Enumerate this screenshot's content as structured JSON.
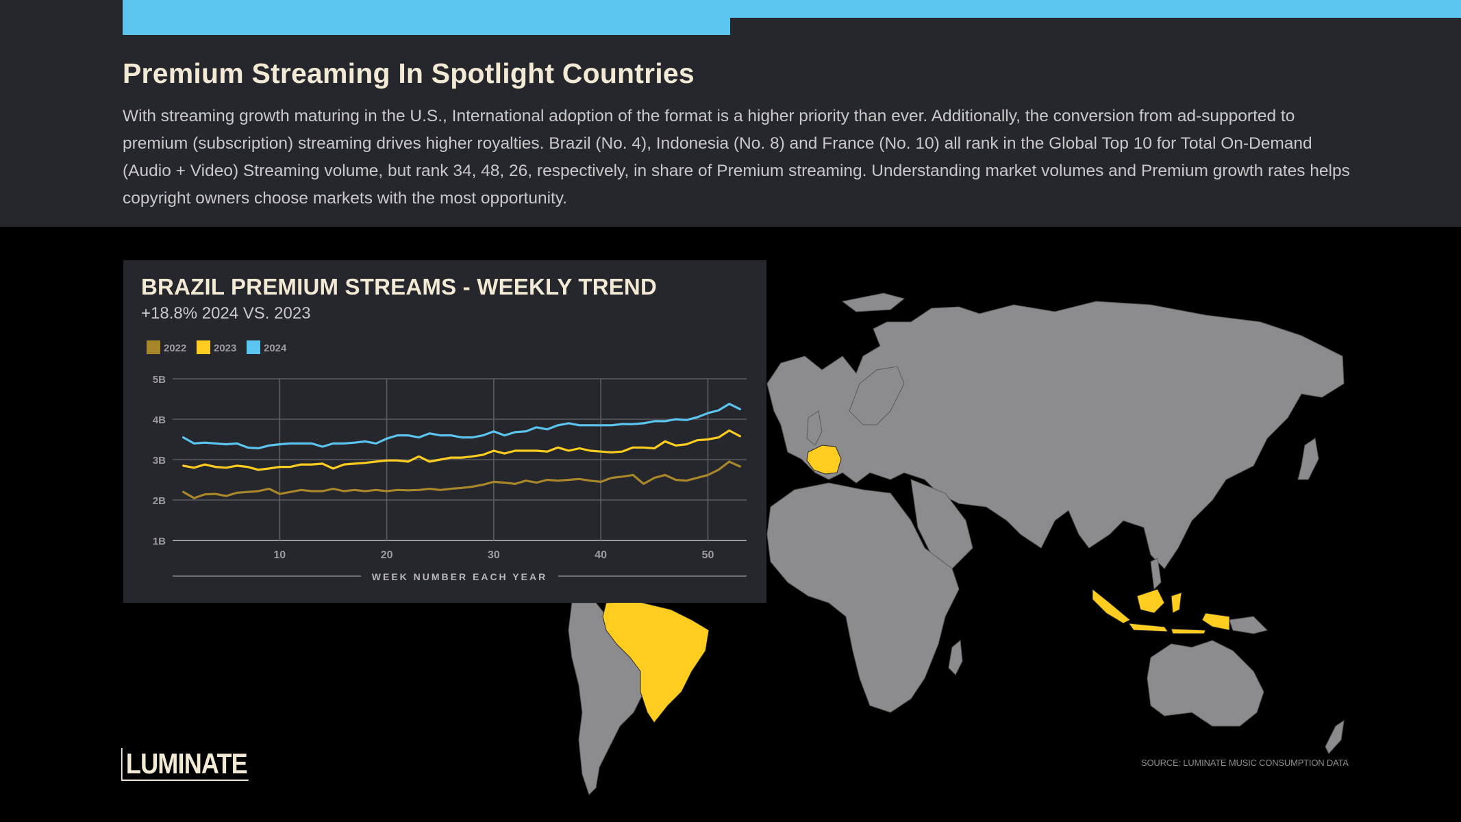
{
  "header": {
    "title": "Premium Streaming In Spotlight Countries",
    "intro": "With streaming growth maturing in the U.S., International adoption of the format is a higher priority than ever. Additionally, the conversion from ad-supported to premium (subscription) streaming drives higher royalties. Brazil (No. 4), Indonesia (No. 8) and France (No. 10) all rank in the Global Top 10 for Total On-Demand (Audio + Video) Streaming volume, but rank 34, 48, 26, respectively, in share of Premium streaming. Understanding market volumes and Premium growth rates helps copyright owners choose markets with the most opportunity."
  },
  "colors": {
    "accent": "#5bc5ef",
    "highlight_country": "#ffcd1f",
    "land": "#8c8c8f",
    "panel": "#26272c"
  },
  "map": {
    "highlighted_countries": [
      "Brazil",
      "France",
      "Indonesia"
    ]
  },
  "chart_data": {
    "type": "line",
    "title": "BRAZIL PREMIUM STREAMS - WEEKLY TREND",
    "subtitle": "+18.8% 2024 VS. 2023",
    "xlabel": "WEEK NUMBER EACH YEAR",
    "ylabel": "",
    "x_ticks": [
      10,
      20,
      30,
      40,
      50
    ],
    "y_ticks": [
      "1B",
      "2B",
      "3B",
      "4B",
      "5B"
    ],
    "y_tick_values": [
      1,
      2,
      3,
      4,
      5
    ],
    "xlim": [
      0,
      54
    ],
    "ylim": [
      1,
      5
    ],
    "grid": true,
    "legend_position": "top-left",
    "x": [
      1,
      2,
      3,
      4,
      5,
      6,
      7,
      8,
      9,
      10,
      11,
      12,
      13,
      14,
      15,
      16,
      17,
      18,
      19,
      20,
      21,
      22,
      23,
      24,
      25,
      26,
      27,
      28,
      29,
      30,
      31,
      32,
      33,
      34,
      35,
      36,
      37,
      38,
      39,
      40,
      41,
      42,
      43,
      44,
      45,
      46,
      47,
      48,
      49,
      50,
      51,
      52,
      53
    ],
    "series": [
      {
        "name": "2022",
        "color": "#a8872b",
        "values": [
          2.2,
          2.05,
          2.14,
          2.15,
          2.1,
          2.18,
          2.2,
          2.22,
          2.28,
          2.15,
          2.2,
          2.25,
          2.22,
          2.22,
          2.28,
          2.22,
          2.25,
          2.22,
          2.25,
          2.22,
          2.25,
          2.24,
          2.25,
          2.28,
          2.25,
          2.28,
          2.3,
          2.33,
          2.38,
          2.45,
          2.43,
          2.4,
          2.48,
          2.43,
          2.5,
          2.48,
          2.5,
          2.52,
          2.48,
          2.45,
          2.55,
          2.58,
          2.62,
          2.4,
          2.55,
          2.62,
          2.5,
          2.48,
          2.55,
          2.62,
          2.75,
          2.95,
          2.83
        ]
      },
      {
        "name": "2023",
        "color": "#ffcd1f",
        "values": [
          2.85,
          2.8,
          2.88,
          2.82,
          2.8,
          2.85,
          2.82,
          2.75,
          2.78,
          2.82,
          2.82,
          2.88,
          2.88,
          2.9,
          2.78,
          2.88,
          2.9,
          2.92,
          2.95,
          2.98,
          2.98,
          2.95,
          3.08,
          2.95,
          3.0,
          3.05,
          3.05,
          3.08,
          3.12,
          3.22,
          3.15,
          3.22,
          3.22,
          3.22,
          3.2,
          3.3,
          3.22,
          3.28,
          3.22,
          3.2,
          3.18,
          3.2,
          3.3,
          3.3,
          3.28,
          3.45,
          3.35,
          3.38,
          3.48,
          3.5,
          3.55,
          3.72,
          3.58
        ]
      },
      {
        "name": "2024",
        "color": "#5bc5ef",
        "values": [
          3.55,
          3.4,
          3.42,
          3.4,
          3.38,
          3.4,
          3.3,
          3.28,
          3.35,
          3.38,
          3.4,
          3.4,
          3.4,
          3.32,
          3.4,
          3.4,
          3.42,
          3.45,
          3.4,
          3.52,
          3.6,
          3.6,
          3.55,
          3.65,
          3.6,
          3.6,
          3.55,
          3.55,
          3.6,
          3.7,
          3.6,
          3.68,
          3.7,
          3.8,
          3.75,
          3.85,
          3.9,
          3.85,
          3.85,
          3.85,
          3.85,
          3.88,
          3.88,
          3.9,
          3.95,
          3.95,
          4.0,
          3.98,
          4.05,
          4.15,
          4.22,
          4.38,
          4.25
        ]
      }
    ]
  },
  "footer": {
    "logo_text": "LUMINATE",
    "source": "SOURCE: LUMINATE MUSIC CONSUMPTION DATA"
  }
}
